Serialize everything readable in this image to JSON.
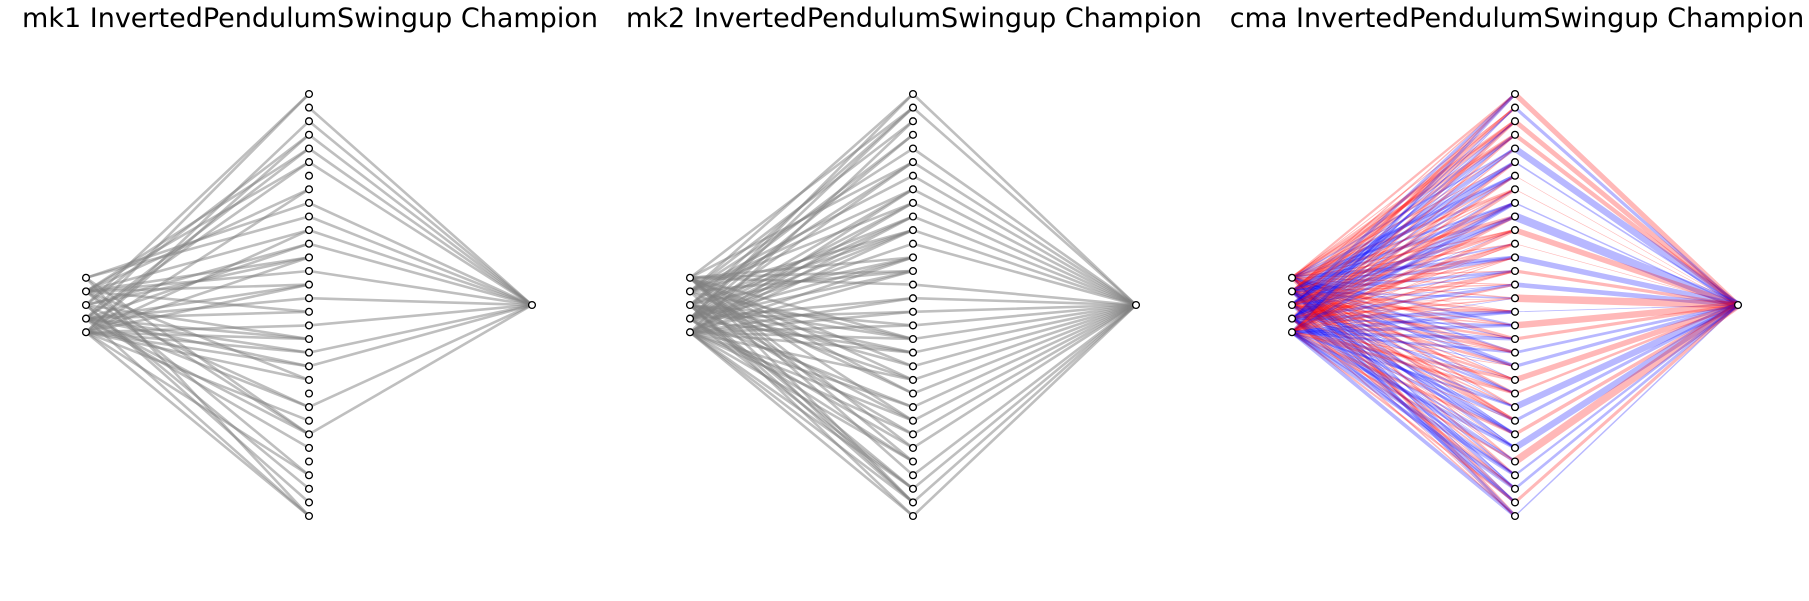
{
  "figure": {
    "panels": [
      {
        "title": "mk1 InvertedPendulumSwingup Champion",
        "style": "grayscale",
        "colors": {
          "edge": "#808080",
          "node_fill": "#ffffff",
          "node_stroke": "#000000"
        },
        "layers": {
          "input": 5,
          "hidden": 32,
          "output": 1
        },
        "edge_density": {
          "input_hidden": 0.3,
          "hidden_output": 0.6
        }
      },
      {
        "title": "mk2 InvertedPendulumSwingup Champion",
        "style": "grayscale",
        "colors": {
          "edge": "#808080",
          "node_fill": "#ffffff",
          "node_stroke": "#000000"
        },
        "layers": {
          "input": 5,
          "hidden": 32,
          "output": 1
        },
        "edge_density": {
          "input_hidden": 0.55,
          "hidden_output": 0.85
        }
      },
      {
        "title": "cma InvertedPendulumSwingup Champion",
        "style": "signed",
        "colors": {
          "positive": "#ff0000",
          "negative": "#0000ff",
          "node_fill": "#ffffff",
          "node_stroke": "#000000"
        },
        "layers": {
          "input": 5,
          "hidden": 32,
          "output": 1
        },
        "edge_density": {
          "input_hidden": 1.0,
          "hidden_output": 1.0
        }
      }
    ]
  }
}
